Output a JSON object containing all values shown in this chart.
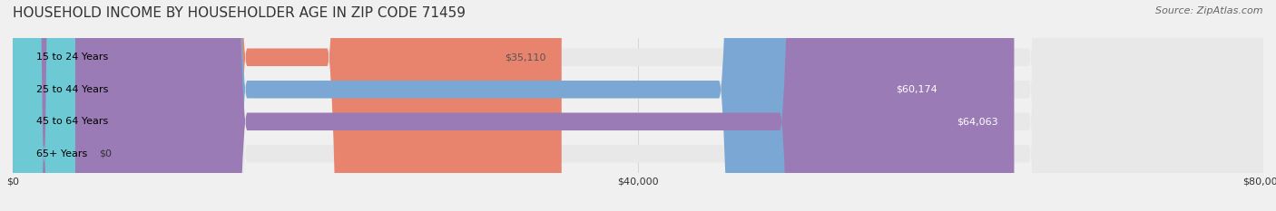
{
  "title": "HOUSEHOLD INCOME BY HOUSEHOLDER AGE IN ZIP CODE 71459",
  "source_text": "Source: ZipAtlas.com",
  "categories": [
    "15 to 24 Years",
    "25 to 44 Years",
    "45 to 64 Years",
    "65+ Years"
  ],
  "values": [
    35110,
    60174,
    64063,
    0
  ],
  "bar_colors": [
    "#E8836E",
    "#7BA7D4",
    "#9B7BB5",
    "#6DCAD4"
  ],
  "label_colors": [
    "#555555",
    "#ffffff",
    "#ffffff",
    "#555555"
  ],
  "value_labels": [
    "$35,110",
    "$60,174",
    "$64,063",
    "$0"
  ],
  "xlim": [
    0,
    80000
  ],
  "xticks": [
    0,
    40000,
    80000
  ],
  "xtick_labels": [
    "$0",
    "$40,000",
    "$80,000"
  ],
  "bg_color": "#f0f0f0",
  "bar_bg_color": "#e8e8e8",
  "title_fontsize": 11,
  "source_fontsize": 8,
  "bar_height": 0.55,
  "figsize": [
    14.06,
    2.33
  ],
  "dpi": 100
}
